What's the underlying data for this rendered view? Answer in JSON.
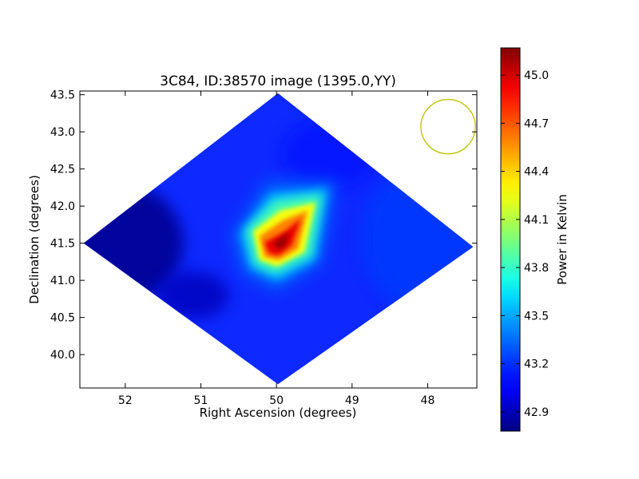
{
  "chart_data": {
    "type": "heatmap",
    "title": "3C84, ID:38570 image (1395.0,YY)",
    "xlabel": "Right Ascension (degrees)",
    "ylabel": "Declination (degrees)",
    "xlim": [
      52.6,
      47.35
    ],
    "ylim": [
      39.55,
      43.55
    ],
    "xticks": [
      52,
      51,
      50,
      49,
      48
    ],
    "yticks": [
      40.0,
      40.5,
      41.0,
      41.5,
      42.0,
      42.5,
      43.0,
      43.5
    ],
    "xtick_labels": [
      "52",
      "51",
      "50",
      "49",
      "48"
    ],
    "ytick_labels": [
      "40.0",
      "40.5",
      "41.0",
      "41.5",
      "42.0",
      "42.5",
      "43.0",
      "43.5"
    ],
    "colormap": "jet",
    "colorbar": {
      "label": "Power in Kelvin",
      "range": [
        42.78,
        45.17
      ],
      "ticks": [
        42.9,
        43.2,
        43.5,
        43.8,
        44.1,
        44.4,
        44.7,
        45.0
      ],
      "tick_labels": [
        "42.9",
        "43.2",
        "43.5",
        "43.8",
        "44.1",
        "44.4",
        "44.7",
        "45.0"
      ]
    },
    "footprint_corners": [
      {
        "ra": 49.98,
        "dec": 43.52
      },
      {
        "ra": 47.4,
        "dec": 41.45
      },
      {
        "ra": 49.98,
        "dec": 39.6
      },
      {
        "ra": 52.55,
        "dec": 41.5
      }
    ],
    "source": {
      "name": "3C84",
      "ra": 49.95,
      "dec": 41.51,
      "peak": 45.17
    },
    "background_level": 42.95,
    "beam_circle": {
      "ra": 47.73,
      "dec": 43.07,
      "radius_deg": 0.36,
      "color": "#bfbf00"
    }
  }
}
